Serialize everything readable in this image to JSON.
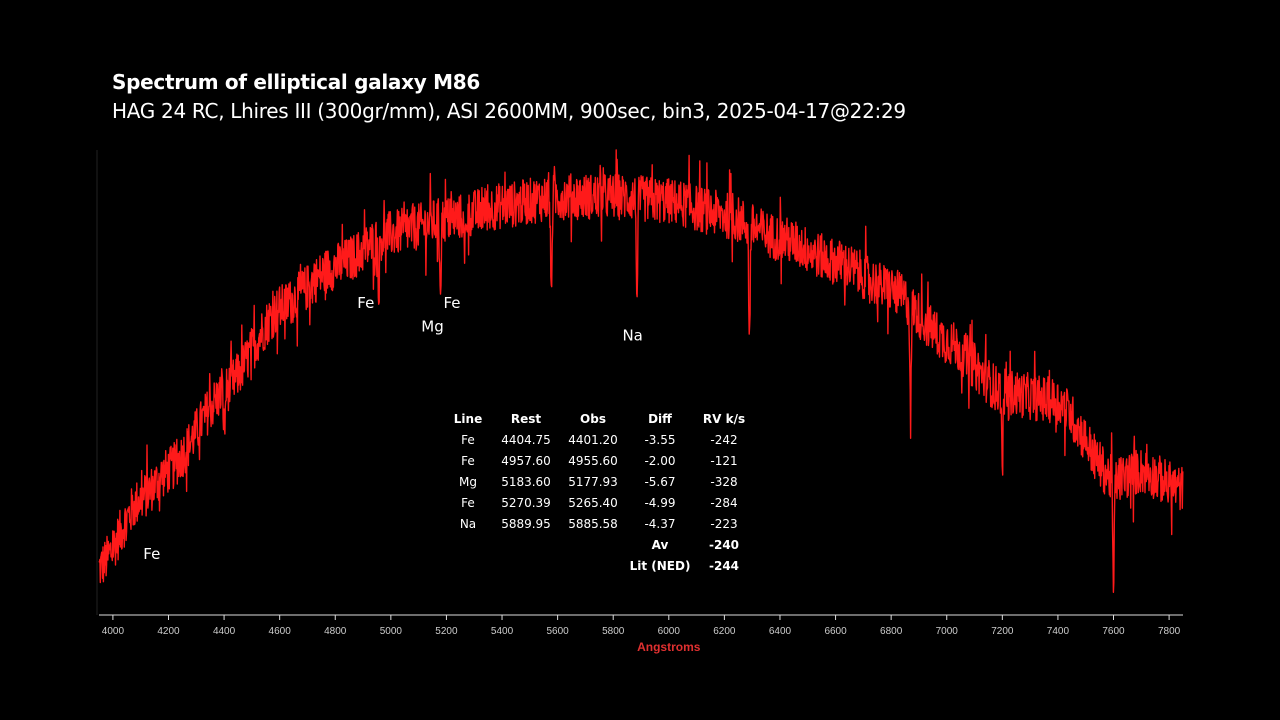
{
  "chart_data": {
    "type": "line",
    "title": "Spectrum of elliptical galaxy M86",
    "subtitle": "HAG 24 RC, Lhires III (300gr/mm), ASI 2600MM, 900sec, bin3, 2025-04-17@22:29",
    "xlabel": "Angstroms",
    "ylabel": "",
    "xlim": [
      3950,
      7850
    ],
    "ylim": [
      0,
      1
    ],
    "xticks": [
      4000,
      4200,
      4400,
      4600,
      4800,
      5000,
      5200,
      5400,
      5600,
      5800,
      6000,
      6200,
      6400,
      6600,
      6800,
      7000,
      7200,
      7400,
      7600,
      7800
    ],
    "series_color": "#ff1a1a",
    "axis_label_color": "#e03030",
    "envelope": {
      "x": [
        3950,
        4100,
        4200,
        4400,
        4600,
        4800,
        5000,
        5200,
        5400,
        5600,
        5800,
        6000,
        6200,
        6400,
        6600,
        6800,
        7000,
        7200,
        7400,
        7600,
        7700,
        7850
      ],
      "y": [
        0.1,
        0.25,
        0.31,
        0.48,
        0.66,
        0.75,
        0.82,
        0.85,
        0.88,
        0.9,
        0.9,
        0.89,
        0.86,
        0.81,
        0.76,
        0.7,
        0.59,
        0.48,
        0.46,
        0.29,
        0.31,
        0.27
      ]
    },
    "absorption_lines": [
      {
        "x": 4401,
        "depth": 0.1
      },
      {
        "x": 4956,
        "depth": 0.1
      },
      {
        "x": 5178,
        "depth": 0.14
      },
      {
        "x": 5265,
        "depth": 0.1
      },
      {
        "x": 5577,
        "depth": 0.22
      },
      {
        "x": 5886,
        "depth": 0.22
      },
      {
        "x": 6290,
        "depth": 0.26
      },
      {
        "x": 6870,
        "depth": 0.24
      },
      {
        "x": 7200,
        "depth": 0.18
      },
      {
        "x": 7600,
        "depth": 0.26
      }
    ],
    "noise_amplitude": 0.05,
    "annotations": [
      {
        "text": "Fe",
        "x": 4140,
        "y": 0.12
      },
      {
        "text": "Fe",
        "x": 4910,
        "y": 0.66
      },
      {
        "text": "Mg",
        "x": 5150,
        "y": 0.61
      },
      {
        "text": "Fe",
        "x": 5220,
        "y": 0.66
      },
      {
        "text": "Na",
        "x": 5870,
        "y": 0.59
      }
    ],
    "table": {
      "headers": [
        "Line",
        "Rest",
        "Obs",
        "Diff",
        "RV k/s"
      ],
      "rows": [
        [
          "Fe",
          "4404.75",
          "4401.20",
          "-3.55",
          "-242"
        ],
        [
          "Fe",
          "4957.60",
          "4955.60",
          "-2.00",
          "-121"
        ],
        [
          "Mg",
          "5183.60",
          "5177.93",
          "-5.67",
          "-328"
        ],
        [
          "Fe",
          "5270.39",
          "5265.40",
          "-4.99",
          "-284"
        ],
        [
          "Na",
          "5889.95",
          "5885.58",
          "-4.37",
          "-223"
        ],
        [
          "",
          "",
          "",
          "Av",
          "-240"
        ],
        [
          "",
          "",
          "",
          "Lit (NED)",
          "-244"
        ]
      ]
    }
  }
}
